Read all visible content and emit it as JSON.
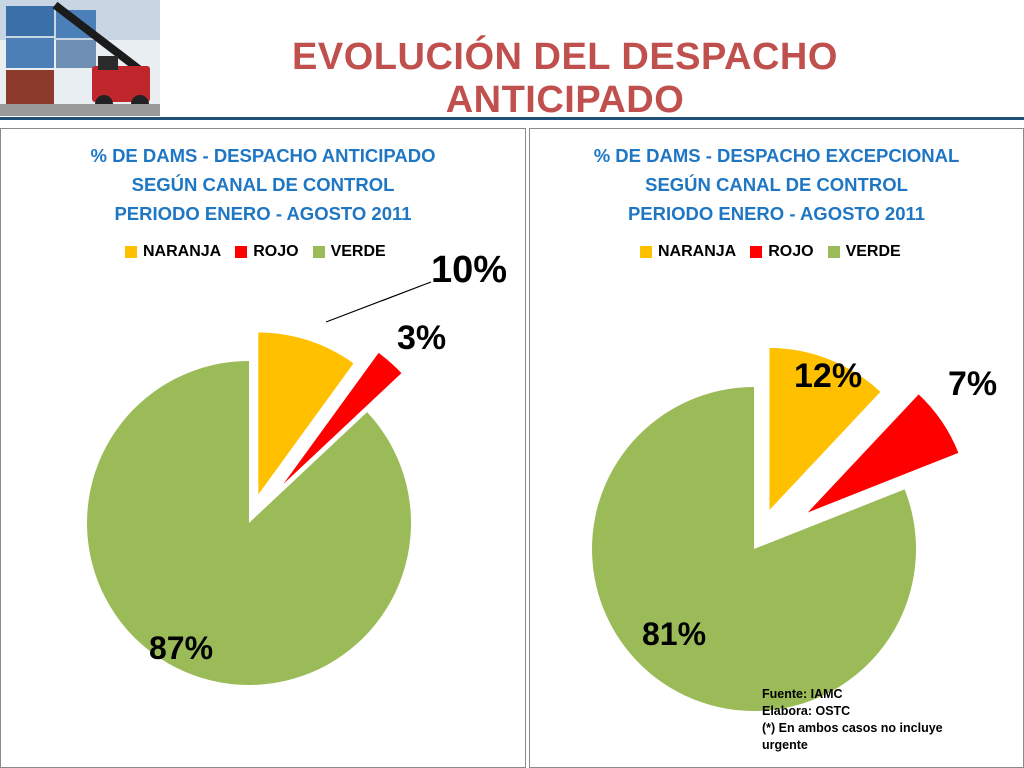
{
  "page": {
    "title": "EVOLUCIÓN DEL DESPACHO ANTICIPADO"
  },
  "legend": {
    "items": [
      {
        "label": "NARANJA",
        "color": "#ffc000"
      },
      {
        "label": "ROJO",
        "color": "#ff0000"
      },
      {
        "label": "VERDE",
        "color": "#9bbb59"
      }
    ]
  },
  "chart_data": [
    {
      "type": "pie",
      "title_lines": [
        "% DE DAMS - DESPACHO ANTICIPADO",
        "SEGÚN CANAL DE CONTROL",
        "PERIODO ENERO - AGOSTO 2011"
      ],
      "categories": [
        "NARANJA",
        "ROJO",
        "VERDE"
      ],
      "values": [
        10,
        3,
        87
      ],
      "data_labels": [
        "10%",
        "3%",
        "87%"
      ],
      "colors": [
        "#ffc000",
        "#ff0000",
        "#9bbb59"
      ],
      "legend_placement": "top",
      "exploded": [
        "NARANJA",
        "ROJO"
      ]
    },
    {
      "type": "pie",
      "title_lines": [
        "% DE DAMS - DESPACHO EXCEPCIONAL",
        "SEGÚN CANAL DE CONTROL",
        "PERIODO ENERO - AGOSTO 2011"
      ],
      "categories": [
        "NARANJA",
        "ROJO",
        "VERDE"
      ],
      "values": [
        12,
        7,
        81
      ],
      "data_labels": [
        "12%",
        "7%",
        "81%"
      ],
      "colors": [
        "#ffc000",
        "#ff0000",
        "#9bbb59"
      ],
      "legend_placement": "top",
      "exploded": [
        "NARANJA",
        "ROJO"
      ]
    }
  ],
  "source_note": {
    "lines": [
      "Fuente: IAMC",
      "Elabora: OSTC",
      "(*) En ambos casos no incluye",
      "urgente"
    ]
  }
}
